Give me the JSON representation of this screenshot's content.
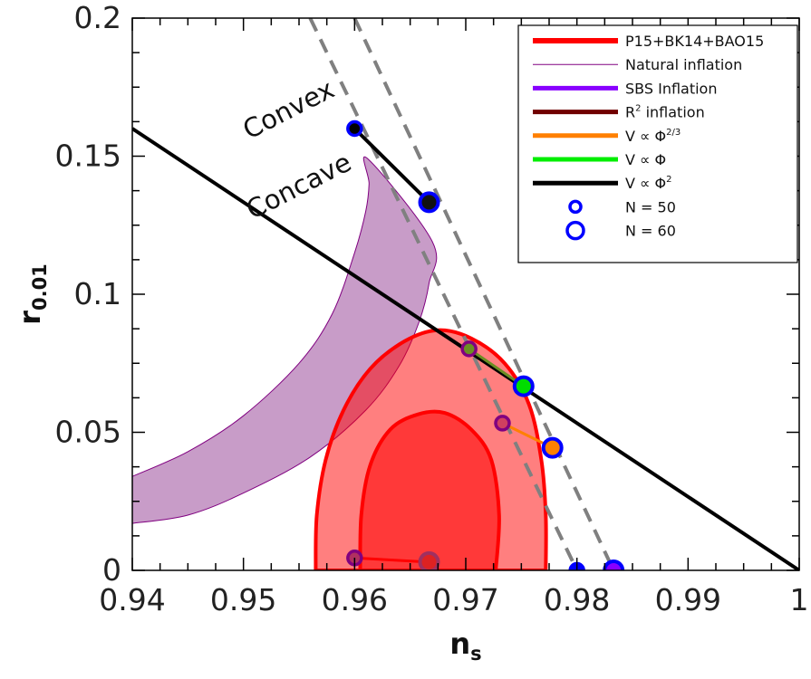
{
  "chart_data": {
    "type": "scatter",
    "xlabel": "n",
    "xlabel_sub": "s",
    "ylabel": "r",
    "ylabel_sub": "0.01",
    "xlim": [
      0.94,
      1.0
    ],
    "ylim": [
      0,
      0.2
    ],
    "x_ticks": [
      "0.94",
      "0.95",
      "0.96",
      "0.97",
      "0.98",
      "0.99",
      "1"
    ],
    "y_ticks": [
      "0",
      "0.05",
      "0.1",
      "0.15",
      "0.2"
    ],
    "x_tick_values": [
      0.94,
      0.95,
      0.96,
      0.97,
      0.98,
      0.99,
      1.0
    ],
    "y_tick_values": [
      0,
      0.05,
      0.1,
      0.15,
      0.2
    ],
    "grid": false,
    "legend_position": "top-right",
    "annotations": [
      {
        "text": "Convex",
        "x": 0.9505,
        "y": 0.156,
        "angle": -27
      },
      {
        "text": "Concave",
        "x": 0.9508,
        "y": 0.127,
        "angle": -27
      }
    ],
    "colors": {
      "planck_region": "#ff0000",
      "natural": "#800080",
      "sbs": "#8800ff",
      "r2": "#700000",
      "phi23": "#ff8000",
      "phi1": "#00ee00",
      "phi2": "#000000",
      "n_marker": "#0000ff",
      "dashed": "#808080",
      "natural_band": "#c89cc8"
    },
    "series": [
      {
        "name": "P15+BK14+BAO15",
        "kind": "contour",
        "outer": [
          [
            0.9565,
            0.0
          ],
          [
            0.9566,
            0.02
          ],
          [
            0.9574,
            0.04
          ],
          [
            0.959,
            0.058
          ],
          [
            0.9614,
            0.073
          ],
          [
            0.9645,
            0.083
          ],
          [
            0.9675,
            0.087
          ],
          [
            0.9705,
            0.084
          ],
          [
            0.9735,
            0.075
          ],
          [
            0.9757,
            0.06
          ],
          [
            0.9768,
            0.04
          ],
          [
            0.9772,
            0.02
          ],
          [
            0.9772,
            0.0
          ]
        ],
        "inner": [
          [
            0.9605,
            0.0
          ],
          [
            0.9606,
            0.02
          ],
          [
            0.9614,
            0.038
          ],
          [
            0.9632,
            0.051
          ],
          [
            0.9657,
            0.0565
          ],
          [
            0.9681,
            0.057
          ],
          [
            0.9705,
            0.051
          ],
          [
            0.9723,
            0.04
          ],
          [
            0.973,
            0.02
          ],
          [
            0.9727,
            0.0
          ]
        ]
      },
      {
        "name": "Natural inflation",
        "kind": "band",
        "upper": [
          [
            0.94,
            0.034
          ],
          [
            0.945,
            0.043
          ],
          [
            0.95,
            0.056
          ],
          [
            0.955,
            0.075
          ],
          [
            0.958,
            0.093
          ],
          [
            0.96,
            0.115
          ],
          [
            0.961,
            0.13
          ],
          [
            0.9613,
            0.14
          ],
          [
            0.9612,
            0.149
          ]
        ],
        "lower": [
          [
            0.967,
            0.119
          ],
          [
            0.9667,
            0.104
          ],
          [
            0.9658,
            0.09
          ],
          [
            0.964,
            0.074
          ],
          [
            0.961,
            0.058
          ],
          [
            0.956,
            0.041
          ],
          [
            0.95,
            0.028
          ],
          [
            0.945,
            0.02
          ],
          [
            0.94,
            0.017
          ]
        ]
      },
      {
        "name": "SBS Inflation",
        "kind": "points",
        "points": [
          [
            0.9833,
            0.0
          ]
        ]
      },
      {
        "name": "R² inflation",
        "kind": "line",
        "points": [
          [
            0.96,
            0.0045
          ],
          [
            0.9667,
            0.003
          ]
        ]
      },
      {
        "name": "V ∝ Φ^2/3",
        "kind": "line",
        "points": [
          [
            0.9733,
            0.0533
          ],
          [
            0.9778,
            0.0444
          ]
        ]
      },
      {
        "name": "V ∝ Φ",
        "kind": "line",
        "points": [
          [
            0.9703,
            0.0802
          ],
          [
            0.9752,
            0.0667
          ]
        ]
      },
      {
        "name": "V ∝ Φ²",
        "kind": "line",
        "points": [
          [
            0.96,
            0.16
          ],
          [
            0.9667,
            0.1333
          ]
        ]
      },
      {
        "name": "N = 50",
        "kind": "marker",
        "points": [
          [
            0.96,
            0.16
          ],
          [
            0.9703,
            0.0802
          ],
          [
            0.9733,
            0.0533
          ],
          [
            0.96,
            0.0045
          ],
          [
            0.98,
            0.0
          ]
        ]
      },
      {
        "name": "N = 60",
        "kind": "marker",
        "points": [
          [
            0.9667,
            0.1333
          ],
          [
            0.9752,
            0.0667
          ],
          [
            0.9778,
            0.0444
          ],
          [
            0.9667,
            0.003
          ],
          [
            0.9833,
            0.0
          ]
        ]
      }
    ],
    "boundary_line": {
      "points": [
        [
          0.94,
          0.16
        ],
        [
          1.0,
          0.0
        ]
      ]
    },
    "dashed_lines": [
      {
        "points": [
          [
            0.956,
            0.2
          ],
          [
            0.98,
            0.0
          ]
        ]
      },
      {
        "points": [
          [
            0.96,
            0.2
          ],
          [
            0.9833,
            0.0
          ]
        ]
      }
    ],
    "legend": [
      {
        "label": "P15+BK14+BAO15",
        "color": "#ff0000",
        "width": 6,
        "kind": "line"
      },
      {
        "label": "Natural inflation",
        "color": "#800080",
        "width": 1,
        "kind": "line"
      },
      {
        "label": "SBS Inflation",
        "color": "#8800ff",
        "width": 5,
        "kind": "line"
      },
      {
        "label": "R",
        "sup": "2",
        "after": " inflation",
        "color": "#700000",
        "width": 5,
        "kind": "line"
      },
      {
        "label": "V ∝ Φ",
        "sup": "2/3",
        "after": "",
        "color": "#ff8000",
        "width": 5,
        "kind": "line"
      },
      {
        "label": "V ∝ Φ",
        "sup": "",
        "after": "",
        "color": "#00ee00",
        "width": 5,
        "kind": "line"
      },
      {
        "label": "V ∝ Φ",
        "sup": "2",
        "after": "",
        "color": "#000000",
        "width": 5,
        "kind": "line"
      },
      {
        "label": "N = 50",
        "color": "#0000ff",
        "kind": "marker-small"
      },
      {
        "label": "N = 60",
        "color": "#0000ff",
        "kind": "marker-large"
      }
    ]
  }
}
